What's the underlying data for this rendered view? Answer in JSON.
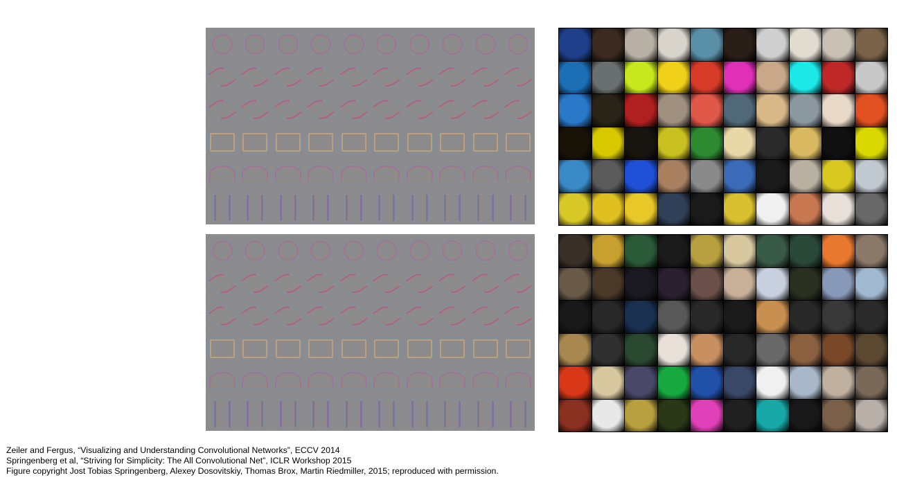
{
  "figure": {
    "grid": {
      "rows": 6,
      "cols": 10
    },
    "patch_colors_top": [
      [
        "#1f3f8a",
        "#3b2a20",
        "#b8b0a4",
        "#d8d4cc",
        "#5a8fa8",
        "#2a1f18",
        "#cfcfcf",
        "#e2dcd0",
        "#c9c0b4",
        "#7a6248"
      ],
      [
        "#1c6fb5",
        "#6a7070",
        "#c7e81c",
        "#f0d018",
        "#d83a28",
        "#e030b8",
        "#c8a888",
        "#1ce8e8",
        "#c02828",
        "#c8c8c8"
      ],
      [
        "#2a78c8",
        "#2a2418",
        "#b02020",
        "#a09080",
        "#e05848",
        "#506878",
        "#d8b888",
        "#8c98a0",
        "#e8d8c8",
        "#e05020"
      ],
      [
        "#1a1408",
        "#d8c800",
        "#181410",
        "#c8c020",
        "#2e8a30",
        "#e8d8a8",
        "#2a2a2a",
        "#d8b860",
        "#101010",
        "#d8d800"
      ],
      [
        "#3a8ac8",
        "#5a5a5a",
        "#2050d8",
        "#a88060",
        "#8a8a8a",
        "#3a6ab8",
        "#1a1a1a",
        "#b8b0a0",
        "#d8c820",
        "#c0c8d0"
      ],
      [
        "#d8c828",
        "#e0c020",
        "#e8c828",
        "#304058",
        "#1a1a1a",
        "#d8c030",
        "#f0f0f0",
        "#c87850",
        "#e8e0d8",
        "#686868"
      ]
    ],
    "patch_colors_bottom": [
      [
        "#3a3028",
        "#c8a030",
        "#2a5a38",
        "#1a1a1a",
        "#b8a040",
        "#d8c8a0",
        "#3a5a48",
        "#2a4838",
        "#e87830",
        "#8a7868"
      ],
      [
        "#6a5a48",
        "#4a3828",
        "#1a1820",
        "#2a2030",
        "#6a5048",
        "#c8b098",
        "#c8d0e0",
        "#2a3020",
        "#8898b8",
        "#a0b8d0"
      ],
      [
        "#181818",
        "#282828",
        "#1a3050",
        "#585858",
        "#282828",
        "#1a1a1a",
        "#c89050",
        "#282828",
        "#383838",
        "#2a2a2a"
      ],
      [
        "#a88850",
        "#303030",
        "#2a4830",
        "#e8e0d8",
        "#c89060",
        "#282828",
        "#686868",
        "#8a6040",
        "#784828",
        "#5a4830"
      ],
      [
        "#d83818",
        "#d8c8a0",
        "#4a4868",
        "#18a840",
        "#2050a8",
        "#3a4868",
        "#f0f0f0",
        "#a8b8c8",
        "#c0b0a0",
        "#7a6858"
      ],
      [
        "#8a3020",
        "#e8e8e8",
        "#b8a040",
        "#2a3818",
        "#e040b8",
        "#202020",
        "#18a8a8",
        "#181818",
        "#7a6048",
        "#b8b0a8"
      ]
    ]
  },
  "caption": {
    "lines": [
      "Zeiler and Fergus, “Visualizing and Understanding Convolutional Networks”, ECCV 2014",
      "Springenberg et al, “Striving for Simplicity: The All Convolutional Net”, ICLR Workshop 2015",
      "Figure copyright Jost Tobias Springenberg, Alexey Dosovitskiy, Thomas Brox, Martin Riedmiller, 2015; reproduced with permission."
    ]
  }
}
